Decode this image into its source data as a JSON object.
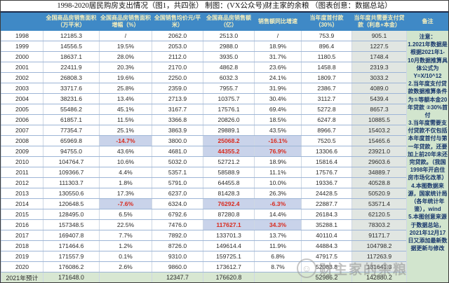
{
  "title": "1998-2020居民购房支出情况（图1，共四张）  制图：(VX公众号)财主家的余粮  （图表创意：数据总站）",
  "watermark": {
    "text": "财主家的余粮",
    "logo_glyph": "☺"
  },
  "colors": {
    "header_bg": "#3f89c6",
    "header_text": "#f6efbd",
    "highlight_bg": "#c9d3ea",
    "highlight_text": "#d92b1f",
    "loan_col_bg": "#e1e6e2",
    "notes_bg": "#d2e5ce",
    "forecast_row_bg": "#d8e7d2",
    "row_border": "#9db5d6"
  },
  "chart_data": {
    "type": "table",
    "title": "1998-2020居民购房支出情况",
    "columns": [
      "",
      "全国商品房销售面积（万平米）",
      "全国商品房销售面积 增幅（%）",
      "全国销售均价元/平米）",
      "全国商品房销售额（亿）",
      "销售额同比增速",
      "当年度首付款（30%）",
      "当年度共需要支付贷款（利息+本金）",
      "备注"
    ],
    "rows": [
      [
        "1998",
        "12185.3",
        "/",
        "2062.0",
        "2513.0",
        "/",
        "753.9",
        "905.1"
      ],
      [
        "1999",
        "14556.5",
        "19.5%",
        "2053.0",
        "2988.0",
        "18.9%",
        "896.4",
        "1227.5"
      ],
      [
        "2000",
        "18637.1",
        "28.0%",
        "2112.0",
        "3935.0",
        "31.7%",
        "1180.5",
        "1748.4"
      ],
      [
        "2001",
        "22411.9",
        "20.3%",
        "2170.0",
        "4862.8",
        "23.6%",
        "1458.8",
        "2319.3"
      ],
      [
        "2002",
        "26808.3",
        "19.6%",
        "2250.0",
        "6032.3",
        "24.1%",
        "1809.7",
        "3033.2"
      ],
      [
        "2003",
        "33717.6",
        "25.8%",
        "2359.0",
        "7955.7",
        "31.9%",
        "2386.7",
        "4089.0"
      ],
      [
        "2004",
        "38231.6",
        "13.4%",
        "2713.9",
        "10375.7",
        "30.4%",
        "3112.7",
        "5439.4"
      ],
      [
        "2005",
        "55486.2",
        "45.1%",
        "3167.7",
        "17576.1",
        "69.4%",
        "5272.8",
        "8657.3"
      ],
      [
        "2006",
        "61857.1",
        "11.5%",
        "3366.8",
        "20826.0",
        "18.5%",
        "6247.8",
        "10885.5"
      ],
      [
        "2007",
        "77354.7",
        "25.1%",
        "3863.9",
        "29889.1",
        "43.5%",
        "8966.7",
        "15403.2"
      ],
      [
        "2008",
        "65969.8",
        "-14.7%",
        "3800.0",
        "25068.2",
        "-16.1%",
        "7520.5",
        "15465.6"
      ],
      [
        "2009",
        "94755.0",
        "43.6%",
        "4681.0",
        "44355.2",
        "76.9%",
        "13306.6",
        "23921.0"
      ],
      [
        "2010",
        "104764.7",
        "10.6%",
        "5032.0",
        "52721.2",
        "18.9%",
        "15816.4",
        "29603.6"
      ],
      [
        "2011",
        "109366.7",
        "4.4%",
        "5357.1",
        "58588.9",
        "11.1%",
        "17576.7",
        "34889.7"
      ],
      [
        "2012",
        "111303.7",
        "1.8%",
        "5791.0",
        "64455.8",
        "10.0%",
        "19336.7",
        "40528.8"
      ],
      [
        "2013",
        "130550.6",
        "17.3%",
        "6237.0",
        "81428.3",
        "26.3%",
        "24428.5",
        "50520.9"
      ],
      [
        "2014",
        "120648.5",
        "-7.6%",
        "6324.0",
        "76292.4",
        "-6.3%",
        "22887.7",
        "53571.4"
      ],
      [
        "2015",
        "128495.0",
        "6.5%",
        "6792.6",
        "87280.8",
        "14.4%",
        "26184.3",
        "62120.5"
      ],
      [
        "2016",
        "157348.5",
        "22.5%",
        "7476.0",
        "117627.1",
        "34.3%",
        "35288.1",
        "78303.2"
      ],
      [
        "2017",
        "169407.8",
        "7.7%",
        "7892.0",
        "133701.3",
        "13.7%",
        "40110.4",
        "91171.7"
      ],
      [
        "2018",
        "171464.6",
        "1.2%",
        "8726.0",
        "149614.4",
        "11.9%",
        "44884.3",
        "104798.2"
      ],
      [
        "2019",
        "171557.9",
        "0.1%",
        "9310.0",
        "159725.1",
        "6.8%",
        "47917.5",
        "117263.9"
      ],
      [
        "2020",
        "176086.2",
        "2.6%",
        "9860.0",
        "173612.7",
        "8.7%",
        "52083.8",
        "131641.3"
      ]
    ],
    "forecast_row": [
      "2021年预计",
      "171648.0",
      "",
      "12347.7",
      "176620.8",
      "",
      "52986.2",
      "142880.2"
    ],
    "highlights": {
      "2008": [
        2,
        4,
        5
      ],
      "2009": [
        4,
        5
      ],
      "2014": [
        2,
        4,
        5
      ],
      "2016": [
        4,
        5
      ]
    },
    "notes": "注意：\n1.2021年数据是根据2021年1-10月数据推算具体公式为\nY=X/10^12\n2.当年度支付贷款数据推算条件为①等额本金20年贷款 ②30%首付\n3.当年度需要支付贷款不仅包括本年度首付与第一年贷款，还要加上前20年未还完贷款。（我国1998年开启住房市场化改革）\n4.本图数据来源，国家统计局（各年统计年鉴），wind\n5.本图创意来源于数据总站，2021年12月17日又添加最新数据更新与修改"
  }
}
